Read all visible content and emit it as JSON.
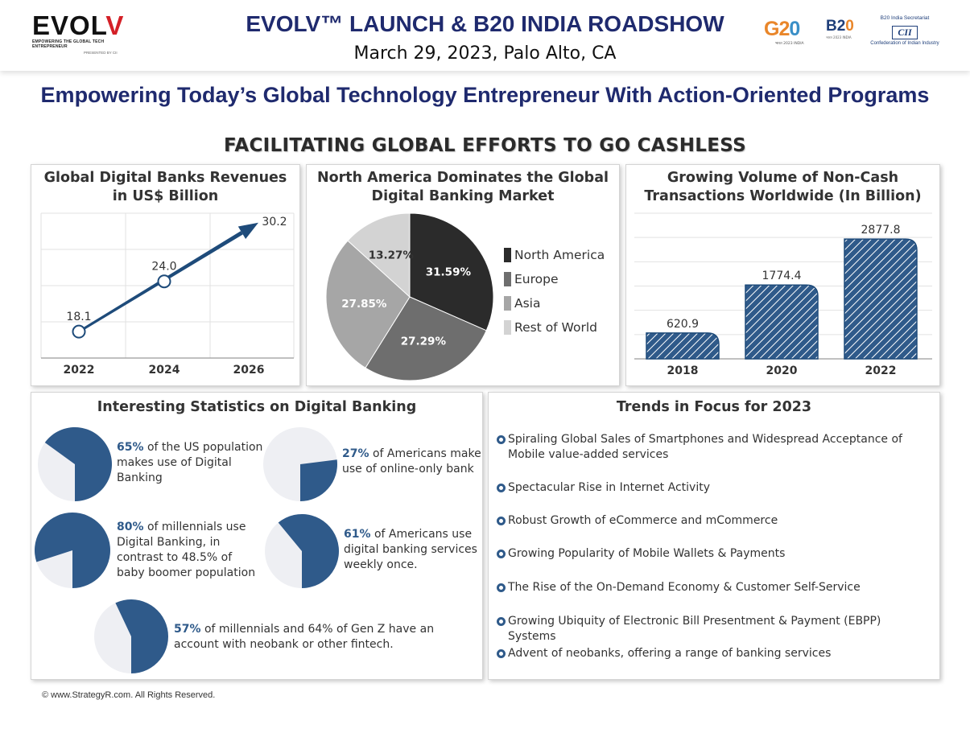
{
  "header": {
    "logo_text": "EVOLV",
    "logo_tagline": "EMPOWERING THE GLOBAL TECH ENTREPRENEUR",
    "logo_presented": "PRESENTED BY CII",
    "title": "EVOLV™ LAUNCH & B20 INDIA ROADSHOW",
    "subtitle": "March 29, 2023, Palo Alto, CA",
    "g20_logo_text": "G20",
    "b20_logo_text": "B20",
    "cii_secretariat": "B20 India Secretariat",
    "cii_logo_text": "CII",
    "cii_name": "Confederation of Indian Industry"
  },
  "tagline": "Empowering Today’s Global Technology Entrepreneur With Action-Oriented Programs",
  "section_title": "FACILITATING GLOBAL EFFORTS TO GO CASHLESS",
  "colors": {
    "navy": "#1f2a6e",
    "accent_blue": "#2f5a8a",
    "dark_blue": "#1e4b7a",
    "light_gray": "#eeeff3"
  },
  "chart_data": [
    {
      "type": "line",
      "title": "Global Digital Banks Revenues in US$ Billion",
      "title_lines": [
        "Global Digital Banks Revenues",
        "in US$ Billion"
      ],
      "x": [
        "2022",
        "2024",
        "2026"
      ],
      "values": [
        18.1,
        24.0,
        30.2
      ],
      "value_labels": [
        "18.1",
        "24.0",
        "30.2"
      ],
      "ylim": [
        15,
        32
      ],
      "grid": true
    },
    {
      "type": "pie",
      "title": "North America Dominates the Global Digital Banking Market",
      "title_lines": [
        "North America Dominates the Global",
        "Digital Banking Market"
      ],
      "labels": [
        "North America",
        "Europe",
        "Asia",
        "Rest of World"
      ],
      "values": [
        31.59,
        27.29,
        27.85,
        13.27
      ],
      "value_labels": [
        "31.59%",
        "27.29%",
        "27.85%",
        "13.27%"
      ],
      "colors": [
        "#2b2b2b",
        "#6e6e6e",
        "#a6a6a6",
        "#d3d3d3"
      ],
      "legend": "right"
    },
    {
      "type": "bar",
      "title": "Growing Volume of Non-Cash Transactions Worldwide (In Billion)",
      "title_lines": [
        "Growing Volume of Non-Cash",
        "Transactions Worldwide (In Billion)"
      ],
      "categories": [
        "2018",
        "2020",
        "2022"
      ],
      "values": [
        620.9,
        1774.4,
        2877.8
      ],
      "value_labels": [
        "620.9",
        "1774.4",
        "2877.8"
      ],
      "ylim": [
        0,
        3500
      ],
      "grid": true
    }
  ],
  "stats": {
    "title": "Interesting Statistics on Digital Banking",
    "items": [
      {
        "pct": "65%",
        "text": [
          "of the US population",
          "makes use of Digital",
          "Banking"
        ],
        "value": 0.65
      },
      {
        "pct": "27%",
        "text": [
          "of Americans make",
          "use of online-only bank"
        ],
        "value": 0.27
      },
      {
        "pct": "80%",
        "text": [
          "of millennials use",
          "Digital Banking, in",
          "contrast to 48.5% of",
          "baby boomer population"
        ],
        "value": 0.8
      },
      {
        "pct": "61%",
        "text": [
          "of Americans use",
          "digital banking services",
          "weekly once."
        ],
        "value": 0.61
      },
      {
        "pct": "57%",
        "text": [
          "of millennials and 64% of Gen Z have an",
          "account with neobank or other fintech."
        ],
        "value": 0.57
      }
    ]
  },
  "trends": {
    "title": "Trends in Focus for 2023",
    "items": [
      "Spiraling Global Sales of Smartphones and Widespread Acceptance of Mobile value-added services",
      "Spectacular Rise in Internet Activity",
      "Robust Growth of eCommerce and mCommerce",
      "Growing Popularity of Mobile Wallets & Payments",
      "The Rise of the On-Demand Economy & Customer Self-Service",
      "Growing Ubiquity of Electronic Bill Presentment & Payment (EBPP) Systems",
      "Advent of neobanks, offering a range of banking services"
    ]
  },
  "footer": "© www.StrategyR.com. All Rights Reserved."
}
